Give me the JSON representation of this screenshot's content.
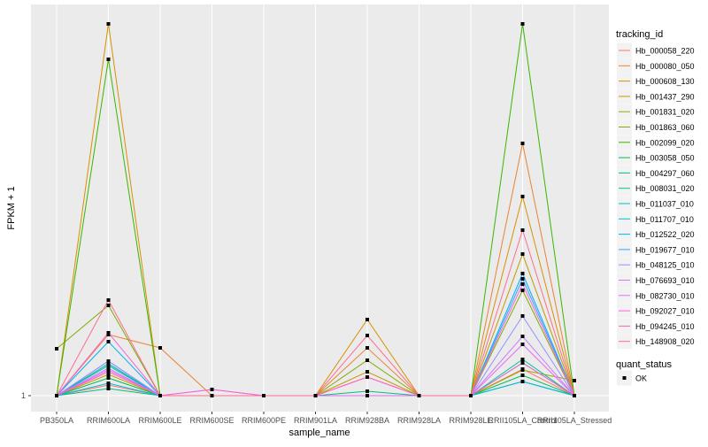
{
  "chart_data": {
    "type": "line",
    "title": "",
    "xlabel": "sample_name",
    "ylabel": "FPKM + 1",
    "y_ticks": [
      "1"
    ],
    "grid": true,
    "legend_placement": "right",
    "categories": [
      "PB350LA",
      "RRIM600LA",
      "RRIM600LE",
      "RRIM600SE",
      "RRIM600PE",
      "RRIM901LA",
      "RRIM928BA",
      "RRIM928LA",
      "RRIM928LE",
      "RRII105LA_Control",
      "RRII105LA_Stressed"
    ],
    "legend_title": "tracking_id",
    "series": [
      {
        "name": "Hb_000058_220",
        "color": "#F8766D",
        "values": [
          1,
          13,
          1,
          1,
          1,
          1,
          1,
          1,
          1,
          31,
          1
        ]
      },
      {
        "name": "Hb_000080_050",
        "color": "#EA8331",
        "values": [
          1,
          70,
          55,
          1,
          1,
          1,
          55,
          1,
          1,
          286,
          1
        ]
      },
      {
        "name": "Hb_000608_130",
        "color": "#D89000",
        "values": [
          1,
          421,
          1,
          1,
          1,
          1,
          87,
          1,
          1,
          226,
          1
        ]
      },
      {
        "name": "Hb_001437_290",
        "color": "#C09B00",
        "values": [
          1,
          25,
          1,
          1,
          1,
          1,
          28,
          1,
          1,
          161,
          1
        ]
      },
      {
        "name": "Hb_001831_020",
        "color": "#A3A500",
        "values": [
          1,
          37,
          1,
          1,
          1,
          1,
          1,
          1,
          1,
          30,
          18
        ]
      },
      {
        "name": "Hb_001863_060",
        "color": "#7CAE00",
        "values": [
          54,
          103,
          1,
          1,
          1,
          1,
          41,
          1,
          1,
          120,
          1
        ]
      },
      {
        "name": "Hb_002099_020",
        "color": "#39B600",
        "values": [
          1,
          381,
          1,
          1,
          1,
          1,
          1,
          1,
          1,
          421,
          1
        ]
      },
      {
        "name": "Hb_003058_050",
        "color": "#00BB4E",
        "values": [
          1,
          21,
          1,
          1,
          1,
          1,
          1,
          1,
          1,
          24,
          1
        ]
      },
      {
        "name": "Hb_004297_060",
        "color": "#00BF7D",
        "values": [
          1,
          9,
          1,
          1,
          1,
          1,
          6,
          1,
          1,
          17,
          1
        ]
      },
      {
        "name": "Hb_008031_020",
        "color": "#00C1A3",
        "values": [
          1,
          35,
          1,
          1,
          1,
          1,
          1,
          1,
          1,
          42,
          1
        ]
      },
      {
        "name": "Hb_011037_010",
        "color": "#00BFC4",
        "values": [
          1,
          37,
          1,
          1,
          1,
          1,
          1,
          1,
          1,
          38,
          1
        ]
      },
      {
        "name": "Hb_011707_010",
        "color": "#00BAE0",
        "values": [
          1,
          15,
          1,
          1,
          1,
          1,
          1,
          1,
          1,
          17,
          1
        ]
      },
      {
        "name": "Hb_012522_020",
        "color": "#00B0F6",
        "values": [
          1,
          62,
          1,
          1,
          1,
          1,
          1,
          1,
          1,
          139,
          1
        ]
      },
      {
        "name": "Hb_019677_010",
        "color": "#35A2FF",
        "values": [
          1,
          40,
          1,
          1,
          1,
          1,
          1,
          1,
          1,
          133,
          1
        ]
      },
      {
        "name": "Hb_048125_010",
        "color": "#9590FF",
        "values": [
          1,
          40,
          1,
          1,
          1,
          1,
          1,
          1,
          1,
          91,
          1
        ]
      },
      {
        "name": "Hb_076693_010",
        "color": "#C77CFF",
        "values": [
          1,
          32,
          1,
          1,
          1,
          1,
          1,
          1,
          1,
          68,
          1
        ]
      },
      {
        "name": "Hb_082730_010",
        "color": "#E76BF3",
        "values": [
          1,
          30,
          1,
          8,
          1,
          1,
          1,
          1,
          1,
          59,
          1
        ]
      },
      {
        "name": "Hb_092027_010",
        "color": "#FA62DB",
        "values": [
          1,
          72,
          1,
          8,
          1,
          1,
          22,
          1,
          1,
          127,
          1
        ]
      },
      {
        "name": "Hb_094245_010",
        "color": "#FF62BC",
        "values": [
          1,
          28,
          1,
          1,
          1,
          1,
          22,
          1,
          1,
          38,
          1
        ]
      },
      {
        "name": "Hb_148908_020",
        "color": "#FF6C91",
        "values": [
          1,
          109,
          1,
          1,
          1,
          1,
          69,
          1,
          1,
          188,
          1
        ]
      }
    ],
    "shape_legend": {
      "title": "quant_status",
      "items": [
        "OK"
      ]
    }
  }
}
